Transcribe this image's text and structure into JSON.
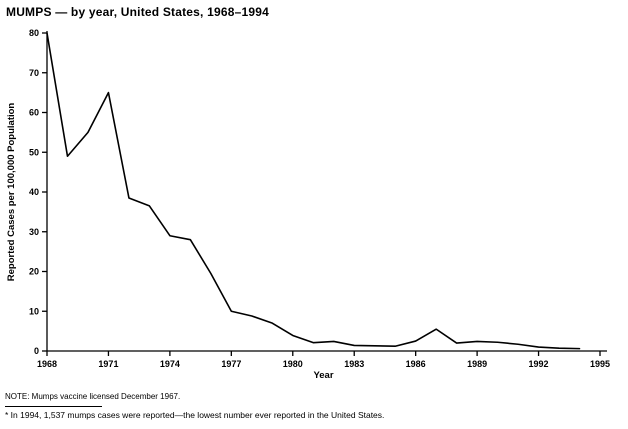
{
  "page": {
    "title": "MUMPS — by year, United States, 1968–1994",
    "note": "NOTE: Mumps vaccine licensed December 1967.",
    "footnote": "* In 1994, 1,537 mumps cases were reported—the lowest number ever reported in the United States."
  },
  "chart_data": {
    "type": "line",
    "title": "MUMPS — by year, United States, 1968–1994",
    "xlabel": "Year",
    "ylabel": "Reported Cases per 100,000 Population",
    "xlim": [
      1968,
      1995
    ],
    "ylim": [
      0,
      80
    ],
    "xticks": [
      1968,
      1971,
      1974,
      1977,
      1980,
      1983,
      1986,
      1989,
      1992,
      1995
    ],
    "yticks": [
      0,
      10,
      20,
      30,
      40,
      50,
      60,
      70,
      80
    ],
    "grid": false,
    "legend": "none",
    "line_color": "#000000",
    "x": [
      1968,
      1969,
      1970,
      1971,
      1972,
      1973,
      1974,
      1975,
      1976,
      1977,
      1978,
      1979,
      1980,
      1981,
      1982,
      1983,
      1984,
      1985,
      1986,
      1987,
      1988,
      1989,
      1990,
      1991,
      1992,
      1993,
      1994
    ],
    "values": [
      80,
      49,
      55,
      65,
      38.5,
      36.5,
      29,
      28,
      19.5,
      10,
      8.8,
      7,
      3.9,
      2.1,
      2.4,
      1.4,
      1.3,
      1.2,
      2.5,
      5.5,
      2.0,
      2.4,
      2.2,
      1.7,
      1.0,
      0.7,
      0.6
    ]
  }
}
